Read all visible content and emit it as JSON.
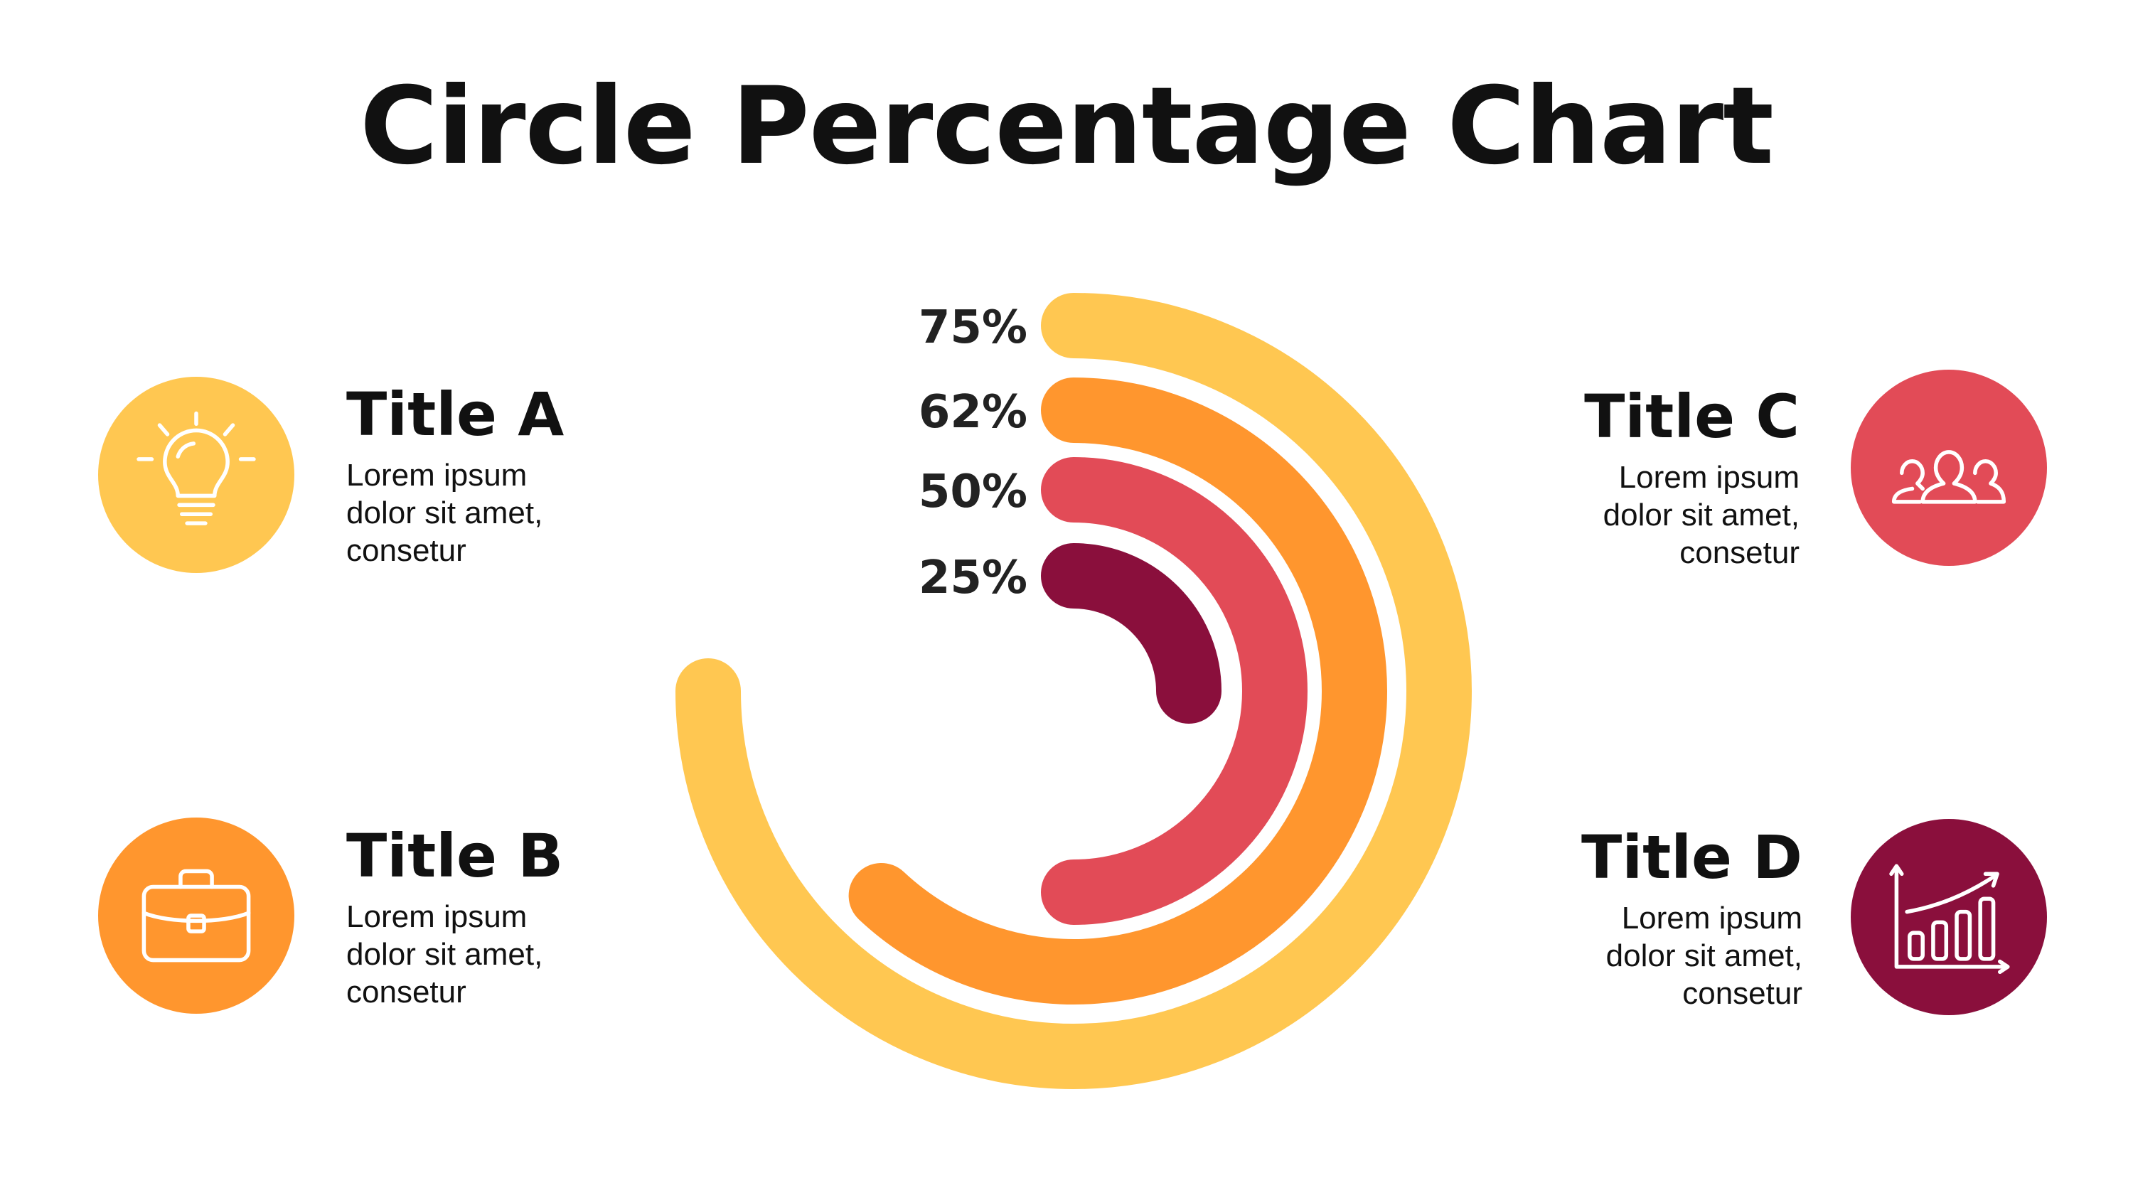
{
  "title": "Circle Percentage Chart",
  "colors": {
    "yellow": "#FFC751",
    "orange": "#FF962E",
    "red": "#E24B57",
    "maroon": "#8A0F3C"
  },
  "chart_data": {
    "type": "radial-bar",
    "series": [
      {
        "label": "75%",
        "value": 75,
        "color": "#FFC751"
      },
      {
        "label": "62%",
        "value": 62,
        "color": "#FF962E"
      },
      {
        "label": "50%",
        "value": 50,
        "color": "#E24B57"
      },
      {
        "label": "25%",
        "value": 25,
        "color": "#8A0F3C"
      }
    ]
  },
  "items": [
    {
      "title": "Title A",
      "desc": "Lorem ipsum dolor sit amet, consetur",
      "icon": "lightbulb-icon",
      "color": "#FFC751"
    },
    {
      "title": "Title B",
      "desc": "Lorem ipsum dolor sit amet, consetur",
      "icon": "briefcase-icon",
      "color": "#FF962E"
    },
    {
      "title": "Title C",
      "desc": "Lorem ipsum dolor sit amet, consetur",
      "icon": "users-icon",
      "color": "#E24B57"
    },
    {
      "title": "Title D",
      "desc": "Lorem ipsum dolor sit amet, consetur",
      "icon": "growth-chart-icon",
      "color": "#8A0F3C"
    }
  ]
}
